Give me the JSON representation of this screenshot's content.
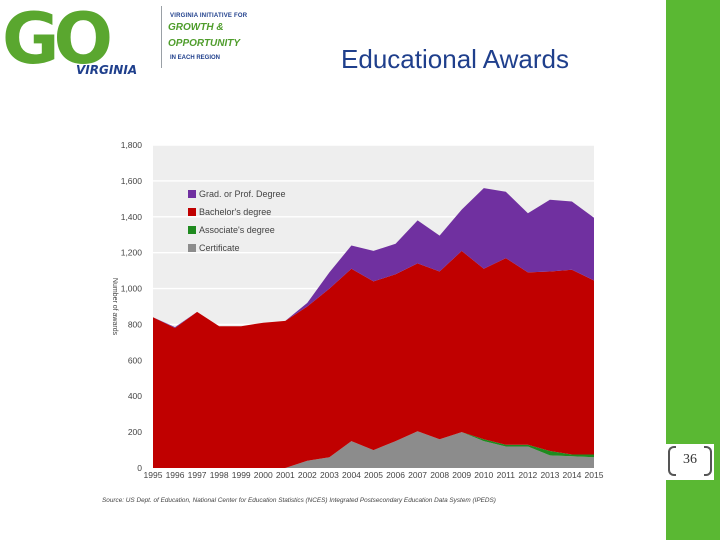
{
  "logo": {
    "go": "GO",
    "virginia": "VIRGINIA",
    "tagline_1": "VIRGINIA INITIATIVE FOR",
    "tagline_2": "GROWTH &",
    "tagline_3": "OPPORTUNITY",
    "tagline_4": "IN EACH REGION"
  },
  "slide": {
    "title": "Educational Awards",
    "page_number": "36",
    "accent_color": "#5ab833"
  },
  "chart_data": {
    "type": "area",
    "stacked": true,
    "ylabel": "Number of awards",
    "ylim": [
      0,
      1800
    ],
    "yticks": [
      0,
      200,
      400,
      600,
      800,
      1000,
      1200,
      1400,
      1600,
      1800
    ],
    "ytick_labels": [
      "0",
      "200",
      "400",
      "600",
      "800",
      "1,000",
      "1,200",
      "1,400",
      "1,600",
      "1,800"
    ],
    "x": [
      "1995",
      "1996",
      "1997",
      "1998",
      "1999",
      "2000",
      "2001",
      "2002",
      "2003",
      "2004",
      "2005",
      "2006",
      "2007",
      "2008",
      "2009",
      "2010",
      "2011",
      "2012",
      "2013",
      "2014",
      "2015"
    ],
    "grid": true,
    "legend_position": "top-left",
    "series": [
      {
        "name": "Certificate",
        "color": "#8c8c8c",
        "values": [
          0,
          0,
          0,
          0,
          0,
          0,
          0,
          40,
          60,
          150,
          100,
          150,
          205,
          160,
          200,
          150,
          120,
          120,
          70,
          65,
          60
        ]
      },
      {
        "name": "Associate's degree",
        "color": "#1f8a1f",
        "values": [
          0,
          0,
          0,
          0,
          0,
          0,
          0,
          0,
          0,
          0,
          0,
          0,
          0,
          0,
          0,
          10,
          10,
          10,
          25,
          10,
          15
        ]
      },
      {
        "name": "Bachelor's degree",
        "color": "#c00000",
        "values": [
          840,
          780,
          870,
          790,
          790,
          810,
          820,
          860,
          940,
          960,
          940,
          930,
          935,
          935,
          1010,
          950,
          1040,
          960,
          1000,
          1030,
          970
        ]
      },
      {
        "name": "Grad. or Prof. Degree",
        "color": "#7030a0",
        "values": [
          0,
          5,
          0,
          0,
          0,
          0,
          0,
          20,
          90,
          130,
          170,
          170,
          240,
          200,
          230,
          450,
          370,
          330,
          400,
          380,
          350
        ]
      }
    ],
    "source": "Source: US Dept. of Education, National Center for Education Statistics (NCES) Integrated Postsecondary Education Data System (IPEDS)"
  }
}
